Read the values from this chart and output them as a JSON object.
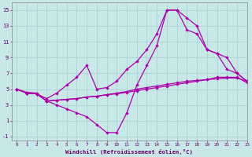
{
  "background_color": "#c8e8e8",
  "grid_color": "#a8cccc",
  "line_color": "#aa00aa",
  "xlabel": "Windchill (Refroidissement éolien,°C)",
  "xlim": [
    -0.5,
    23
  ],
  "ylim": [
    -1.5,
    16
  ],
  "yticks": [
    -1,
    1,
    3,
    5,
    7,
    9,
    11,
    13,
    15
  ],
  "xticks": [
    0,
    1,
    2,
    3,
    4,
    5,
    6,
    7,
    8,
    9,
    10,
    11,
    12,
    13,
    14,
    15,
    16,
    17,
    18,
    19,
    20,
    21,
    22,
    23
  ],
  "line1_x": [
    0,
    1,
    2,
    3,
    4,
    5,
    6,
    7,
    8,
    9,
    10,
    11,
    12,
    13,
    14,
    15,
    16,
    17,
    18,
    19,
    20,
    21,
    22,
    23
  ],
  "line1_y": [
    5.0,
    4.6,
    4.5,
    3.5,
    3.6,
    3.7,
    3.8,
    4.0,
    4.1,
    4.3,
    4.5,
    4.7,
    5.0,
    5.2,
    5.4,
    5.6,
    5.8,
    6.0,
    6.1,
    6.2,
    6.3,
    6.4,
    6.4,
    6.0
  ],
  "line2_x": [
    0,
    1,
    2,
    3,
    4,
    5,
    6,
    7,
    8,
    9,
    10,
    11,
    12,
    13,
    14,
    15,
    16,
    17,
    18,
    19,
    20,
    21,
    22,
    23
  ],
  "line2_y": [
    5.0,
    4.5,
    4.4,
    3.5,
    3.0,
    2.5,
    2.0,
    1.5,
    0.5,
    -0.5,
    -0.5,
    2.0,
    5.5,
    8.0,
    10.5,
    15.0,
    15.0,
    12.5,
    12.0,
    10.0,
    9.5,
    9.0,
    7.0,
    6.0
  ],
  "line3_x": [
    0,
    1,
    2,
    3,
    4,
    5,
    6,
    7,
    8,
    9,
    10,
    11,
    12,
    13,
    14,
    15,
    16,
    17,
    18,
    19,
    20,
    21,
    22,
    23
  ],
  "line3_y": [
    5.0,
    4.5,
    4.4,
    3.8,
    4.5,
    5.5,
    6.5,
    8.0,
    5.0,
    5.2,
    6.0,
    7.5,
    8.5,
    10.0,
    12.0,
    15.0,
    15.0,
    14.0,
    13.0,
    10.0,
    9.5,
    7.5,
    7.0,
    6.0
  ],
  "line4_x": [
    0,
    1,
    2,
    3,
    4,
    5,
    6,
    7,
    8,
    9,
    10,
    11,
    12,
    13,
    14,
    15,
    16,
    17,
    18,
    19,
    20,
    21,
    22,
    23
  ],
  "line4_y": [
    5.0,
    4.5,
    4.4,
    3.5,
    3.6,
    3.7,
    3.8,
    4.0,
    4.1,
    4.3,
    4.4,
    4.6,
    4.8,
    5.0,
    5.2,
    5.4,
    5.6,
    5.8,
    6.0,
    6.2,
    6.5,
    6.5,
    6.5,
    5.8
  ]
}
